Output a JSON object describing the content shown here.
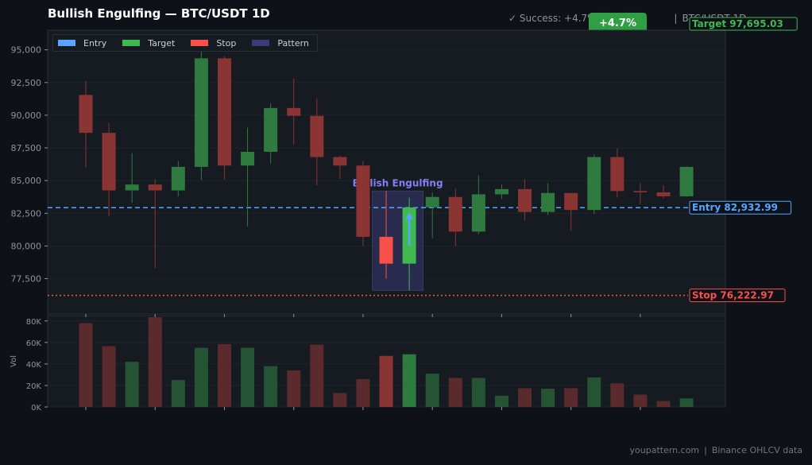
{
  "header": {
    "title": "Bullish Engulfing  —  BTC/USDT 1D",
    "success_text": "✓ Success: +4.7%",
    "separator": "|",
    "pair_text": "BTC/USDT 1D",
    "badge": "+4.7%"
  },
  "footer": {
    "site": "youpattern.com",
    "separator": "|",
    "source": "Binance OHLCV data"
  },
  "legend": [
    {
      "label": "Entry",
      "color": "#58a6ff"
    },
    {
      "label": "Target",
      "color": "#3fb950"
    },
    {
      "label": "Stop",
      "color": "#f85149"
    },
    {
      "label": "Pattern",
      "color": "#3b3b7a"
    }
  ],
  "chart_data": {
    "type": "candlestick",
    "title": "Bullish Engulfing  —  BTC/USDT 1D",
    "ylim": [
      74800,
      96500
    ],
    "yticks": [
      77500,
      80000,
      82500,
      85000,
      87500,
      90000,
      92500,
      95000
    ],
    "ytick_labels": [
      "77,500",
      "80,000",
      "82,500",
      "85,000",
      "87,500",
      "90,000",
      "92,500",
      "95,000"
    ],
    "candles": [
      {
        "open": 91550,
        "high": 92600,
        "low": 86000,
        "close": 88650
      },
      {
        "open": 88650,
        "high": 89400,
        "low": 82300,
        "close": 84250
      },
      {
        "open": 84250,
        "high": 87100,
        "low": 83300,
        "close": 84700
      },
      {
        "open": 84700,
        "high": 85100,
        "low": 78300,
        "close": 84250
      },
      {
        "open": 84250,
        "high": 86500,
        "low": 83800,
        "close": 86050
      },
      {
        "open": 86050,
        "high": 95000,
        "low": 85050,
        "close": 94350
      },
      {
        "open": 94350,
        "high": 94500,
        "low": 85100,
        "close": 86150
      },
      {
        "open": 86150,
        "high": 89050,
        "low": 81500,
        "close": 87200
      },
      {
        "open": 87200,
        "high": 90900,
        "low": 86300,
        "close": 90550
      },
      {
        "open": 90550,
        "high": 92800,
        "low": 87750,
        "close": 89950
      },
      {
        "open": 89950,
        "high": 91300,
        "low": 84650,
        "close": 86800
      },
      {
        "open": 86800,
        "high": 86900,
        "low": 85150,
        "close": 86150
      },
      {
        "open": 86150,
        "high": 86500,
        "low": 80000,
        "close": 80700
      },
      {
        "open": 80700,
        "high": 84200,
        "low": 77500,
        "close": 78650
      },
      {
        "open": 78650,
        "high": 83700,
        "low": 76600,
        "close": 82950
      },
      {
        "open": 82950,
        "high": 84100,
        "low": 80600,
        "close": 83750
      },
      {
        "open": 83750,
        "high": 84400,
        "low": 80000,
        "close": 81100
      },
      {
        "open": 81100,
        "high": 85400,
        "low": 80900,
        "close": 83950
      },
      {
        "open": 83950,
        "high": 84700,
        "low": 83600,
        "close": 84350
      },
      {
        "open": 84350,
        "high": 85100,
        "low": 81950,
        "close": 82600
      },
      {
        "open": 82600,
        "high": 84800,
        "low": 82350,
        "close": 84050
      },
      {
        "open": 84050,
        "high": 84050,
        "low": 81150,
        "close": 82750
      },
      {
        "open": 82750,
        "high": 87000,
        "low": 82450,
        "close": 86800
      },
      {
        "open": 86800,
        "high": 87450,
        "low": 83700,
        "close": 84200
      },
      {
        "open": 84200,
        "high": 84800,
        "low": 83200,
        "close": 84100
      },
      {
        "open": 84100,
        "high": 84650,
        "low": 83650,
        "close": 83800
      },
      {
        "open": 83800,
        "high": 86100,
        "low": 83750,
        "close": 86050
      }
    ],
    "volume": {
      "ylabel": "Vol",
      "ylim": [
        0,
        85000
      ],
      "yticks": [
        0,
        20000,
        40000,
        60000,
        80000
      ],
      "ytick_labels": [
        "0K",
        "20K",
        "40K",
        "60K",
        "80K"
      ],
      "values": [
        78000,
        56500,
        42000,
        83500,
        25000,
        55000,
        58500,
        55000,
        38000,
        34000,
        58000,
        13000,
        26000,
        47500,
        49000,
        31000,
        27000,
        27000,
        10500,
        17500,
        17000,
        17500,
        27500,
        22000,
        11500,
        5500,
        8000
      ]
    },
    "entry": {
      "label": "Entry",
      "value": 82932.99,
      "value_text": "82,932.99",
      "color": "#58a6ff"
    },
    "target": {
      "label": "Target",
      "value": 97695.03,
      "value_text": "97,695.03",
      "color": "#3fb950"
    },
    "stop": {
      "label": "Stop",
      "value": 76222.97,
      "value_text": "76,222.97",
      "color": "#f85149"
    },
    "pattern": {
      "label": "Bullish Engulfing",
      "start_index": 13,
      "end_index": 14,
      "low": 76600,
      "high": 84200
    },
    "colors": {
      "up": "#2f7a3f",
      "down": "#8b3434",
      "pattern_up": "#3fb950",
      "pattern_down": "#f85149",
      "pattern_fill": "#2a2d52",
      "pattern_label": "#8b7cf6",
      "arrow": "#58a6ff",
      "grid": "#1f252d",
      "axis_text": "#8b949e",
      "panel_bg": "#161b22"
    }
  }
}
